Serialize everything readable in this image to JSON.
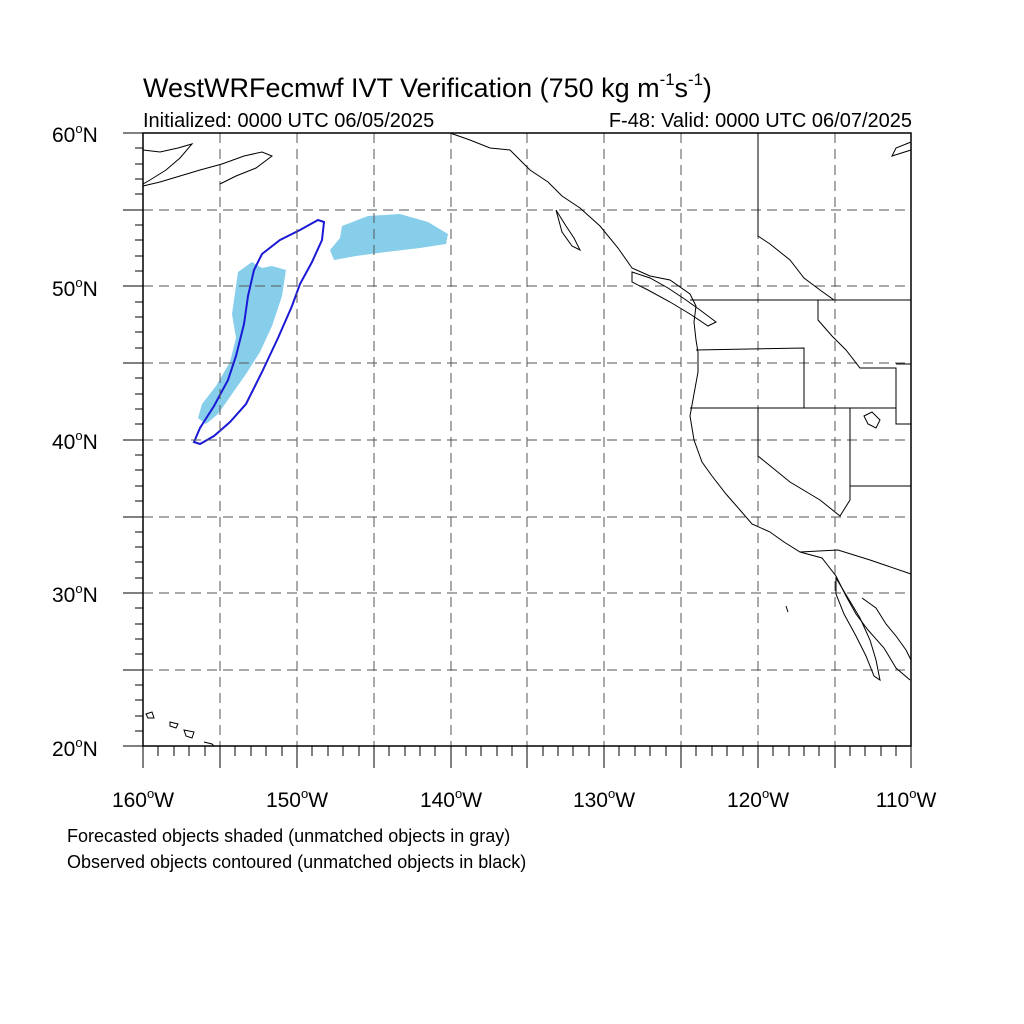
{
  "title": {
    "main": "WestWRFecmwf IVT Verification (750 kg m",
    "exp1": "-1",
    "s": "s",
    "exp2": "-1",
    "close": ")"
  },
  "initialized": "Initialized: 0000 UTC 06/05/2025",
  "valid": "F-48: Valid: 0000 UTC 06/07/2025",
  "axes": {
    "y_labels": [
      {
        "deg": "60",
        "suffix": "N",
        "lat": 60
      },
      {
        "deg": "50",
        "suffix": "N",
        "lat": 50
      },
      {
        "deg": "40",
        "suffix": "N",
        "lat": 40
      },
      {
        "deg": "30",
        "suffix": "N",
        "lat": 30
      },
      {
        "deg": "20",
        "suffix": "N",
        "lat": 20
      }
    ],
    "x_labels": [
      {
        "deg": "160",
        "suffix": "W",
        "lon": -160
      },
      {
        "deg": "150",
        "suffix": "W",
        "lon": -150
      },
      {
        "deg": "140",
        "suffix": "W",
        "lon": -140
      },
      {
        "deg": "130",
        "suffix": "W",
        "lon": -130
      },
      {
        "deg": "120",
        "suffix": "W",
        "lon": -120
      },
      {
        "deg": "110",
        "suffix": "W",
        "lon": -110
      }
    ],
    "lon_range": [
      -160,
      -110
    ],
    "lat_range": [
      20,
      60
    ],
    "gridlines_every_deg": 5
  },
  "notes": [
    "Forecasted objects shaded (unmatched objects in gray)",
    "Observed objects contoured (unmatched objects in black)"
  ],
  "colors": {
    "forecast_fill": "#87ceeb",
    "observed_contour": "#1a1ad6",
    "coastline": "#000000",
    "grid": "#555555"
  }
}
